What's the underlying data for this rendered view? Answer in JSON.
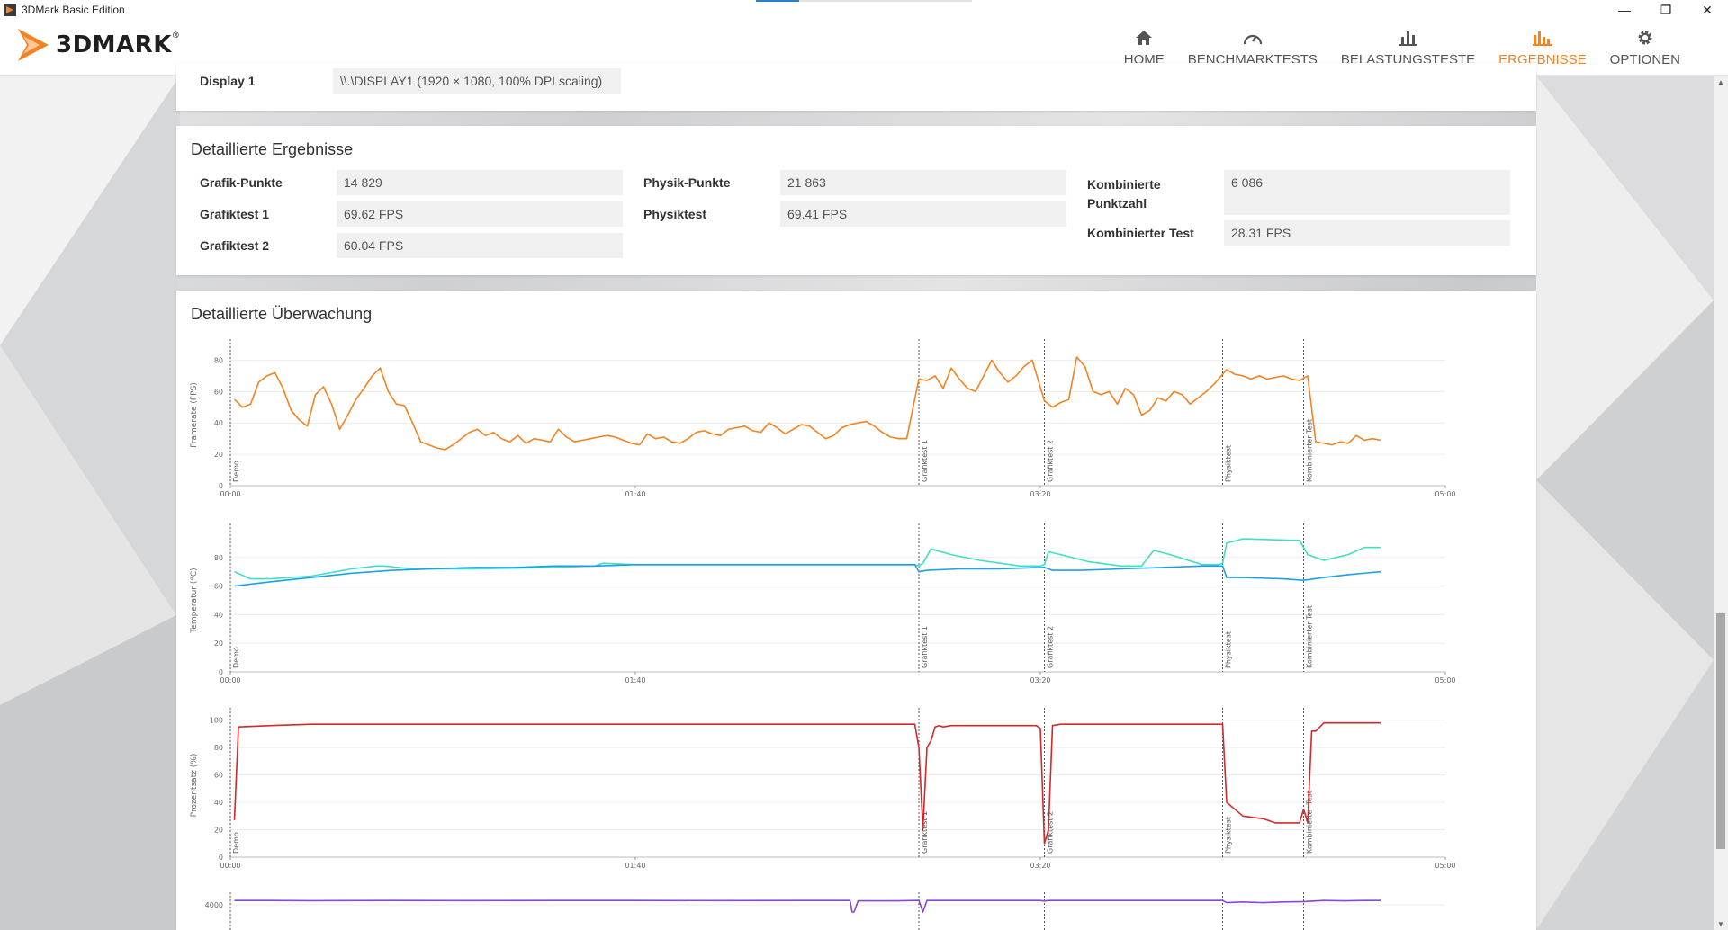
{
  "window": {
    "title": "3DMark Basic Edition",
    "controls": {
      "minimize": "—",
      "restore": "❐",
      "close": "✕"
    }
  },
  "header": {
    "logo_text": "3DMARK",
    "logo_mark": "®",
    "nav": [
      {
        "label": "HOME",
        "icon": "home-icon",
        "active": false
      },
      {
        "label": "BENCHMARKTESTS",
        "icon": "gauge-icon",
        "active": false
      },
      {
        "label": "BELASTUNGSTESTE",
        "icon": "bar-chart-icon",
        "active": false
      },
      {
        "label": "ERGEBNISSE",
        "icon": "results-icon",
        "active": true
      },
      {
        "label": "OPTIONEN",
        "icon": "gear-icon",
        "active": false
      }
    ],
    "accent_color": "#f58220"
  },
  "system_info": {
    "display_label": "Display 1",
    "display_value": "\\\\.\\DISPLAY1 (1920 × 1080, 100% DPI scaling)"
  },
  "detailed_results": {
    "title": "Detaillierte Ergebnisse",
    "items": [
      {
        "label": "Grafik-Punkte",
        "value": "14 829"
      },
      {
        "label": "Grafiktest 1",
        "value": "69.62 FPS"
      },
      {
        "label": "Grafiktest 2",
        "value": "60.04 FPS"
      },
      {
        "label": "Physik-Punkte",
        "value": "21 863"
      },
      {
        "label": "Physiktest",
        "value": "69.41 FPS"
      },
      {
        "label": "Kombinierte Punktzahl",
        "value": "6 086"
      },
      {
        "label": "Kombinierter Test",
        "value": "28.31 FPS"
      }
    ]
  },
  "monitoring": {
    "title": "Detaillierte Überwachung",
    "x_ticks": [
      "00:00",
      "01:40",
      "03:20",
      "05:00"
    ],
    "section_labels": [
      "Demo",
      "Grafiktest 1",
      "Grafiktest 2",
      "Physiktest",
      "Kombinierter Test"
    ],
    "section_starts_sec": [
      0,
      170,
      201,
      245,
      265
    ],
    "x_max_sec": 300
  },
  "chart_data": [
    {
      "type": "line",
      "ylabel": "Framerate (FPS)",
      "ylim": [
        0,
        90
      ],
      "yticks": [
        0,
        20,
        40,
        60,
        80
      ],
      "xlim": [
        0,
        300
      ],
      "series": [
        {
          "color": "#f58220",
          "x": [
            1,
            3,
            5,
            7,
            9,
            11,
            13,
            15,
            17,
            19,
            21,
            23,
            25,
            27,
            29,
            31,
            33,
            35,
            37,
            39,
            41,
            43,
            45,
            47,
            49,
            51,
            53,
            55,
            57,
            59,
            61,
            63,
            65,
            67,
            69,
            71,
            73,
            75,
            77,
            79,
            81,
            83,
            85,
            87,
            89,
            91,
            93,
            95,
            97,
            99,
            101,
            103,
            105,
            107,
            109,
            111,
            113,
            115,
            117,
            119,
            121,
            123,
            125,
            127,
            129,
            131,
            133,
            135,
            137,
            139,
            141,
            143,
            145,
            147,
            149,
            151,
            153,
            155,
            157,
            159,
            161,
            163,
            165,
            167,
            170,
            172,
            174,
            176,
            178,
            180,
            182,
            184,
            186,
            188,
            190,
            192,
            194,
            196,
            198,
            201,
            203,
            205,
            207,
            209,
            211,
            213,
            215,
            217,
            219,
            221,
            223,
            225,
            227,
            229,
            231,
            233,
            235,
            237,
            239,
            241,
            243,
            246,
            248,
            250,
            252,
            254,
            256,
            258,
            260,
            262,
            264,
            266,
            268,
            270,
            272,
            274,
            276,
            278,
            280,
            282,
            284
          ],
          "y": [
            55,
            50,
            52,
            66,
            70,
            72,
            62,
            48,
            42,
            38,
            58,
            63,
            52,
            36,
            45,
            55,
            62,
            70,
            75,
            60,
            52,
            51,
            40,
            28,
            26,
            24,
            23,
            26,
            30,
            34,
            36,
            32,
            34,
            30,
            28,
            32,
            27,
            30,
            29,
            28,
            36,
            31,
            28,
            29,
            30,
            31,
            32,
            31,
            29,
            27,
            26,
            33,
            30,
            31,
            28,
            27,
            30,
            34,
            35,
            33,
            32,
            36,
            37,
            38,
            35,
            34,
            40,
            37,
            33,
            36,
            39,
            38,
            34,
            30,
            32,
            37,
            39,
            40,
            41,
            38,
            34,
            31,
            30,
            30,
            68,
            67,
            70,
            62,
            75,
            68,
            62,
            60,
            70,
            80,
            72,
            66,
            70,
            76,
            80,
            54,
            50,
            53,
            55,
            82,
            76,
            60,
            58,
            60,
            52,
            62,
            58,
            45,
            48,
            56,
            54,
            60,
            58,
            52,
            56,
            60,
            65,
            74,
            71,
            70,
            68,
            70,
            68,
            69,
            70,
            68,
            67,
            70,
            28,
            27,
            26,
            28,
            27,
            32,
            29,
            30,
            29
          ]
        }
      ]
    },
    {
      "type": "line",
      "ylabel": "Temperatur (°C)",
      "ylim": [
        0,
        100
      ],
      "yticks": [
        0,
        20,
        40,
        60,
        80
      ],
      "xlim": [
        0,
        300
      ],
      "series": [
        {
          "color": "#40e0c0",
          "x": [
            1,
            5,
            10,
            20,
            30,
            36,
            38,
            45,
            60,
            80,
            90,
            92,
            100,
            120,
            140,
            160,
            169,
            170,
            171,
            173,
            178,
            185,
            195,
            200,
            201,
            202,
            205,
            212,
            220,
            225,
            228,
            232,
            240,
            244,
            245,
            246,
            250,
            262,
            264,
            266,
            270,
            276,
            280,
            284
          ],
          "y": [
            70,
            65,
            65,
            67,
            72,
            74,
            74,
            72,
            72,
            73,
            74,
            76,
            75,
            75,
            75,
            75,
            75,
            74,
            76,
            86,
            82,
            78,
            74,
            74,
            75,
            84,
            82,
            77,
            74,
            74,
            85,
            82,
            75,
            75,
            76,
            90,
            93,
            92,
            92,
            82,
            78,
            82,
            87,
            87
          ],
          "name": ""
        },
        {
          "color": "#1ea0e8",
          "x": [
            1,
            10,
            20,
            30,
            40,
            50,
            60,
            70,
            80,
            90,
            100,
            110,
            120,
            130,
            140,
            150,
            160,
            169,
            170,
            172,
            180,
            190,
            200,
            201,
            203,
            210,
            220,
            230,
            240,
            245,
            246,
            250,
            260,
            265,
            270,
            276,
            284
          ],
          "y": [
            60,
            63,
            66,
            69,
            71,
            72,
            73,
            73,
            74,
            74,
            75,
            75,
            75,
            75,
            75,
            75,
            75,
            75,
            70,
            71,
            72,
            72,
            73,
            73,
            71,
            71,
            72,
            73,
            74,
            74,
            66,
            66,
            65,
            64,
            66,
            68,
            70
          ],
          "name": ""
        }
      ]
    },
    {
      "type": "line",
      "ylabel": "Prozentsatz (%)",
      "ylim": [
        0,
        105
      ],
      "yticks": [
        0,
        20,
        40,
        60,
        80,
        100
      ],
      "xlim": [
        0,
        300
      ],
      "series": [
        {
          "color": "#d12a2a",
          "x": [
            1,
            2,
            10,
            20,
            40,
            60,
            80,
            100,
            120,
            140,
            160,
            169,
            170,
            171,
            172,
            173,
            174,
            175,
            176,
            178,
            180,
            185,
            190,
            199,
            200,
            201,
            202,
            203,
            205,
            210,
            220,
            230,
            244,
            245,
            246,
            248,
            250,
            255,
            258,
            260,
            264,
            265,
            266,
            267,
            268,
            270,
            276,
            284
          ],
          "y": [
            27,
            95,
            96,
            97,
            97,
            97,
            97,
            97,
            97,
            97,
            97,
            97,
            80,
            20,
            80,
            85,
            95,
            96,
            95,
            96,
            96,
            96,
            96,
            96,
            94,
            10,
            20,
            96,
            97,
            97,
            97,
            97,
            97,
            97,
            40,
            35,
            30,
            28,
            25,
            25,
            25,
            35,
            25,
            92,
            92,
            98,
            98,
            98
          ]
        }
      ]
    },
    {
      "type": "line",
      "ylabel": "",
      "ylim": [
        0,
        5000
      ],
      "yticks": [
        4000
      ],
      "xlim": [
        0,
        300
      ],
      "series": [
        {
          "color": "#8a46d6",
          "x": [
            1,
            10,
            20,
            40,
            60,
            80,
            100,
            120,
            140,
            150,
            153,
            153.5,
            154,
            155,
            156,
            160,
            165,
            169,
            170,
            171,
            172,
            180,
            190,
            200,
            201,
            202,
            210,
            220,
            230,
            240,
            245,
            246,
            250,
            255,
            260,
            265,
            270,
            275,
            280,
            284
          ],
          "y": [
            4600,
            4600,
            4580,
            4600,
            4590,
            4600,
            4600,
            4590,
            4600,
            4600,
            4600,
            3000,
            3000,
            4550,
            4550,
            4550,
            4550,
            4600,
            4600,
            3000,
            4600,
            4600,
            4600,
            4600,
            4520,
            4600,
            4600,
            4600,
            4600,
            4600,
            4600,
            4300,
            4400,
            4300,
            4400,
            4450,
            4600,
            4550,
            4600,
            4600
          ],
          "name": ""
        }
      ]
    }
  ]
}
